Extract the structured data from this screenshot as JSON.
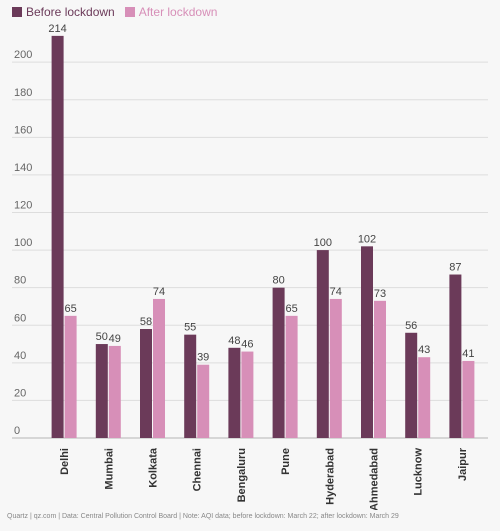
{
  "chart_data": {
    "type": "bar",
    "categories": [
      "Delhi",
      "Mumbai",
      "Kolkata",
      "Chennai",
      "Bengaluru",
      "Pune",
      "Hyderabad",
      "Ahmedabad",
      "Lucknow",
      "Jaipur"
    ],
    "series": [
      {
        "name": "Before lockdown",
        "values": [
          214,
          50,
          58,
          55,
          48,
          80,
          100,
          102,
          56,
          87
        ],
        "color": "#6b3a59"
      },
      {
        "name": "After lockdown",
        "values": [
          65,
          49,
          74,
          39,
          46,
          65,
          74,
          73,
          43,
          41
        ],
        "color": "#d78fb8"
      }
    ],
    "ylim": [
      0,
      220
    ],
    "yticks": [
      0,
      20,
      40,
      60,
      80,
      100,
      120,
      140,
      160,
      180,
      200
    ],
    "grid": true,
    "legend_position": "top-left"
  },
  "source_note": "Quartz | qz.com | Data: Central Pollution Control Board | Note: AQI data; before lockdown: March 22; after lockdown: March 29"
}
